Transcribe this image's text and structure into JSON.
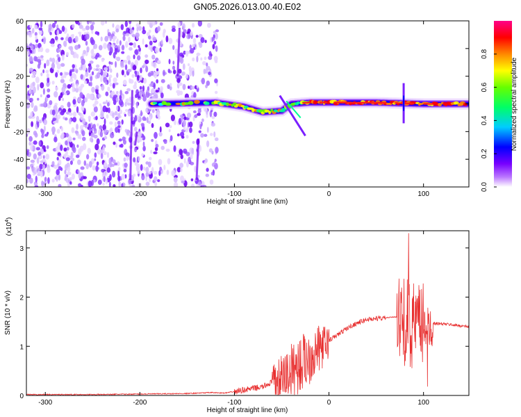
{
  "title": "GN05.2026.013.00.40.E02",
  "chart_data": [
    {
      "type": "heatmap",
      "name": "spectrogram",
      "xlabel": "Height of straight line (km)",
      "ylabel": "Frequency (Hz)",
      "xlim": [
        -320,
        148
      ],
      "ylim": [
        -60,
        60
      ],
      "xticks": [
        -300,
        -200,
        -100,
        0,
        100
      ],
      "xtick_labels": [
        "-300",
        "-200",
        "-100",
        "0",
        "100"
      ],
      "yticks": [
        60,
        40,
        20,
        0,
        -20,
        -40,
        -60
      ],
      "ytick_labels": [
        "60",
        "40",
        "20",
        "0",
        "-20",
        "-40",
        "-60"
      ],
      "band_center_hz": [
        {
          "x": -185,
          "f": 0
        },
        {
          "x": -120,
          "f": 1
        },
        {
          "x": -90,
          "f": -2
        },
        {
          "x": -70,
          "f": -6
        },
        {
          "x": -50,
          "f": -5
        },
        {
          "x": -40,
          "f": 0
        },
        {
          "x": -20,
          "f": 1
        },
        {
          "x": 0,
          "f": 1
        },
        {
          "x": 50,
          "f": 1
        },
        {
          "x": 100,
          "f": 0
        },
        {
          "x": 148,
          "f": 0
        }
      ],
      "colorbar": {
        "label": "Normalized spectral amplitude",
        "range": [
          0.0,
          1.0
        ],
        "ticks": [
          0.0,
          0.2,
          0.4,
          0.6,
          0.8
        ],
        "tick_labels": [
          "0.0",
          "0.2",
          "0.4",
          "0.6",
          "0.8"
        ],
        "colors": [
          "#ffffff",
          "#7700ff",
          "#0000ff",
          "#00ffff",
          "#00ff00",
          "#ffff00",
          "#ff8800",
          "#ff0000",
          "#ff0088"
        ]
      }
    },
    {
      "type": "line",
      "name": "snr",
      "xlabel": "Height of straight line (km)",
      "ylabel": "SNR (10 * v/v)",
      "yscale_label": "(x10",
      "yscale_exp": "4",
      "yscale_close": ")",
      "xlim": [
        -320,
        148
      ],
      "ylim": [
        0,
        3.35
      ],
      "xticks": [
        -300,
        -200,
        -100,
        0,
        100
      ],
      "xtick_labels": [
        "-300",
        "-200",
        "-100",
        "0",
        "100"
      ],
      "yticks": [
        0,
        1,
        2,
        3
      ],
      "ytick_labels": [
        "0",
        "1",
        "2",
        "3"
      ],
      "color": "#e83030",
      "envelope": {
        "x": [
          -320,
          -250,
          -200,
          -150,
          -125,
          -110,
          -100,
          -90,
          -80,
          -70,
          -60,
          -50,
          -40,
          -30,
          -20,
          -10,
          0,
          10,
          20,
          30,
          40,
          50,
          60,
          70,
          75,
          80,
          85,
          90,
          95,
          100,
          105,
          110,
          120,
          130,
          148
        ],
        "y": [
          0.02,
          0.02,
          0.03,
          0.04,
          0.06,
          0.05,
          0.08,
          0.12,
          0.15,
          0.18,
          0.28,
          0.4,
          0.55,
          0.7,
          0.85,
          1.0,
          1.12,
          1.25,
          1.38,
          1.48,
          1.55,
          1.57,
          1.58,
          1.6,
          1.6,
          1.58,
          1.55,
          1.52,
          1.5,
          1.48,
          1.46,
          1.47,
          1.46,
          1.44,
          1.4
        ]
      }
    }
  ]
}
